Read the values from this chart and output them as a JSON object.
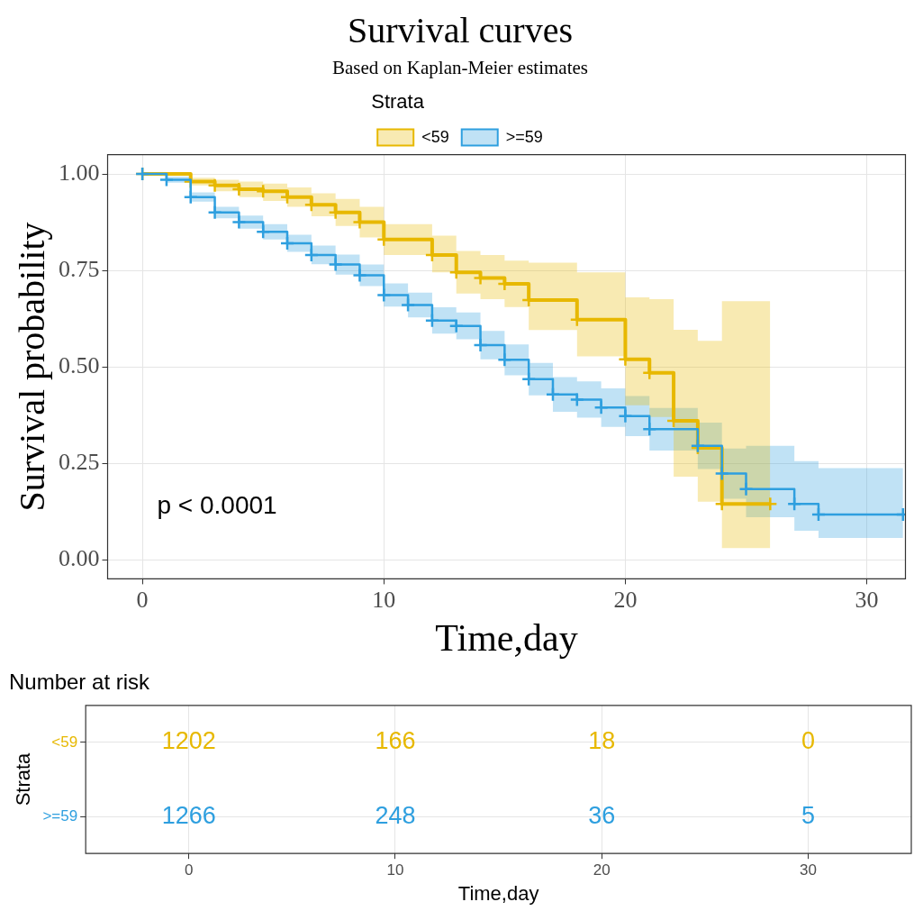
{
  "chart_data": [
    {
      "type": "step",
      "title": "Survival curves",
      "subtitle": "Based on Kaplan-Meier estimates",
      "xlabel": "Time,day",
      "ylabel": "Survival probability",
      "legend_title": "Strata",
      "legend": "top",
      "grid": true,
      "marker": "cross",
      "line_style": "solid",
      "xlim": [
        -1.44,
        31.6
      ],
      "xticks": [
        0,
        10,
        20,
        30
      ],
      "ylim": [
        -0.05,
        1.05
      ],
      "yticks": [
        {
          "value": 0,
          "label": "0.00"
        },
        {
          "value": 0.25,
          "label": "0.25"
        },
        {
          "value": 0.5,
          "label": "0.50"
        },
        {
          "value": 0.75,
          "label": "0.75"
        },
        {
          "value": 1,
          "label": "1.00"
        }
      ],
      "annotations": [
        "p < 0.0001"
      ],
      "series": [
        {
          "name": "<59",
          "color": "#e7b800",
          "x": [
            0,
            2,
            3,
            4,
            5,
            6,
            7,
            8,
            9,
            10,
            12,
            13,
            14,
            15,
            16,
            18,
            20,
            21,
            22,
            23,
            24,
            26
          ],
          "values": [
            1.0,
            0.98,
            0.97,
            0.96,
            0.955,
            0.94,
            0.92,
            0.9,
            0.875,
            0.83,
            0.79,
            0.745,
            0.73,
            0.715,
            0.673,
            0.622,
            0.519,
            0.484,
            0.36,
            0.29,
            0.144,
            0.144
          ],
          "lower": [
            1.0,
            0.97,
            0.955,
            0.94,
            0.93,
            0.915,
            0.89,
            0.865,
            0.835,
            0.79,
            0.745,
            0.69,
            0.675,
            0.655,
            0.595,
            0.527,
            0.4,
            0.37,
            0.215,
            0.15,
            0.03,
            0.03
          ],
          "upper": [
            1.0,
            0.99,
            0.985,
            0.98,
            0.975,
            0.965,
            0.95,
            0.935,
            0.915,
            0.87,
            0.84,
            0.8,
            0.79,
            0.775,
            0.77,
            0.745,
            0.68,
            0.675,
            0.596,
            0.567,
            0.67,
            0.67
          ]
        },
        {
          "name": ">=59",
          "color": "#2e9fdf",
          "x": [
            0,
            1,
            2,
            3,
            4,
            5,
            6,
            7,
            8,
            9,
            10,
            11,
            12,
            13,
            14,
            15,
            16,
            17,
            18,
            19,
            20,
            21,
            23,
            24,
            25,
            27,
            28,
            31.5
          ],
          "values": [
            1.0,
            0.985,
            0.94,
            0.9,
            0.875,
            0.85,
            0.82,
            0.79,
            0.765,
            0.737,
            0.686,
            0.66,
            0.62,
            0.606,
            0.556,
            0.518,
            0.468,
            0.428,
            0.415,
            0.394,
            0.372,
            0.338,
            0.295,
            0.223,
            0.183,
            0.144,
            0.117,
            0.117
          ],
          "lower": [
            1.0,
            0.977,
            0.928,
            0.885,
            0.858,
            0.83,
            0.798,
            0.766,
            0.739,
            0.709,
            0.656,
            0.628,
            0.586,
            0.571,
            0.519,
            0.478,
            0.426,
            0.383,
            0.368,
            0.344,
            0.32,
            0.283,
            0.235,
            0.158,
            0.11,
            0.075,
            0.056,
            0.056
          ],
          "upper": [
            1.0,
            0.993,
            0.952,
            0.915,
            0.892,
            0.87,
            0.842,
            0.814,
            0.791,
            0.765,
            0.716,
            0.692,
            0.654,
            0.641,
            0.593,
            0.558,
            0.51,
            0.473,
            0.462,
            0.444,
            0.424,
            0.393,
            0.355,
            0.288,
            0.295,
            0.255,
            0.237,
            0.237
          ]
        }
      ]
    },
    {
      "type": "heatmap",
      "title": "Number at risk",
      "xlabel": "Time,day",
      "ylabel": "Strata",
      "data_labels": true,
      "grid": true,
      "categories": [
        "0",
        "10",
        "20",
        "30"
      ],
      "y_categories": [
        "<59",
        ">=59"
      ],
      "colors": [
        "#e7b800",
        "#2e9fdf"
      ],
      "cells": [
        [
          1202,
          166,
          18,
          0
        ],
        [
          1266,
          248,
          36,
          5
        ]
      ]
    }
  ]
}
